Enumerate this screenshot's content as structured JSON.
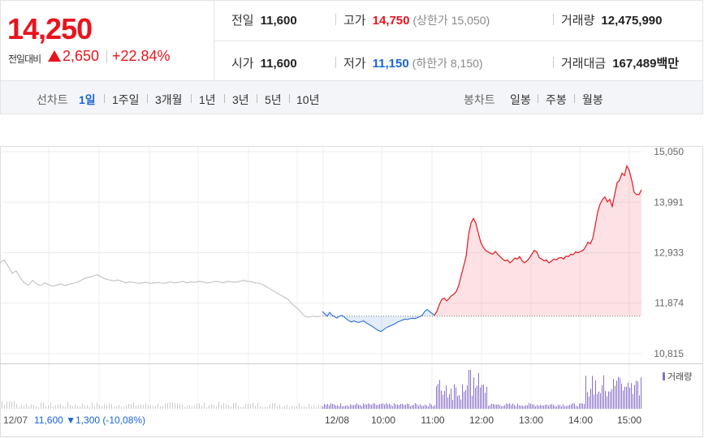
{
  "summary": {
    "price": "14,250",
    "change_label": "전일대비",
    "change_value": "2,650",
    "change_pct": "+22.84%",
    "prev_close_label": "전일",
    "prev_close": "11,600",
    "open_label": "시가",
    "open": "11,600",
    "high_label": "고가",
    "high": "14,750",
    "upper_limit": "(상한가 15,050)",
    "low_label": "저가",
    "low": "11,150",
    "lower_limit": "(하한가 8,150)",
    "volume_label": "거래량",
    "volume": "12,475,990",
    "amount_label": "거래대금",
    "amount": "167,489",
    "amount_unit": "백만"
  },
  "tabs": {
    "line_title": "선차트",
    "line": [
      "1일",
      "1주일",
      "3개월",
      "1년",
      "3년",
      "5년",
      "10년"
    ],
    "candle_title": "봉차트",
    "candle": [
      "일봉",
      "주봉",
      "월봉"
    ]
  },
  "colors": {
    "up": "#e8141d",
    "down": "#1a64d6",
    "accent": "#1a64d6"
  },
  "chart_data": {
    "type": "line",
    "ylabels": [
      "15,050",
      "13,991",
      "12,933",
      "11,874",
      "10,815"
    ],
    "ylim": [
      10815,
      15050
    ],
    "baseline": 11600,
    "xlabels": [
      "12/07",
      "12/08",
      "10:00",
      "11:00",
      "12:00",
      "13:00",
      "14:00",
      "15:00"
    ],
    "volume_label": "거래량",
    "prev_day_footer": "11,600 ▼1,300 (-10,08%)",
    "prev_day": [
      [
        0,
        12720
      ],
      [
        5,
        12780
      ],
      [
        10,
        12650
      ],
      [
        15,
        12500
      ],
      [
        20,
        12550
      ],
      [
        25,
        12400
      ],
      [
        30,
        12300
      ],
      [
        35,
        12250
      ],
      [
        40,
        12350
      ],
      [
        45,
        12280
      ],
      [
        50,
        12240
      ],
      [
        55,
        12300
      ],
      [
        60,
        12260
      ],
      [
        65,
        12230
      ],
      [
        70,
        12250
      ],
      [
        75,
        12280
      ],
      [
        80,
        12240
      ],
      [
        85,
        12270
      ],
      [
        90,
        12290
      ],
      [
        95,
        12310
      ],
      [
        100,
        12350
      ],
      [
        105,
        12400
      ],
      [
        110,
        12420
      ],
      [
        115,
        12440
      ],
      [
        120,
        12470
      ],
      [
        125,
        12420
      ],
      [
        130,
        12380
      ],
      [
        135,
        12360
      ],
      [
        140,
        12340
      ],
      [
        145,
        12360
      ],
      [
        150,
        12330
      ],
      [
        155,
        12300
      ],
      [
        160,
        12320
      ],
      [
        165,
        12310
      ],
      [
        170,
        12290
      ],
      [
        175,
        12300
      ],
      [
        180,
        12310
      ],
      [
        185,
        12290
      ],
      [
        190,
        12300
      ],
      [
        195,
        12310
      ],
      [
        200,
        12290
      ],
      [
        205,
        12300
      ],
      [
        210,
        12320
      ],
      [
        215,
        12300
      ],
      [
        220,
        12310
      ],
      [
        225,
        12330
      ],
      [
        230,
        12300
      ],
      [
        235,
        12320
      ],
      [
        240,
        12310
      ],
      [
        245,
        12330
      ],
      [
        250,
        12320
      ],
      [
        255,
        12300
      ],
      [
        260,
        12310
      ],
      [
        265,
        12330
      ],
      [
        270,
        12320
      ],
      [
        275,
        12300
      ],
      [
        280,
        12330
      ],
      [
        285,
        12320
      ],
      [
        290,
        12310
      ],
      [
        295,
        12330
      ],
      [
        300,
        12350
      ],
      [
        305,
        12330
      ],
      [
        310,
        12320
      ],
      [
        315,
        12300
      ],
      [
        320,
        12290
      ],
      [
        325,
        12250
      ],
      [
        330,
        12200
      ],
      [
        335,
        12150
      ],
      [
        340,
        12100
      ],
      [
        345,
        12050
      ],
      [
        350,
        12000
      ],
      [
        355,
        11950
      ],
      [
        360,
        11850
      ],
      [
        365,
        11780
      ],
      [
        370,
        11700
      ],
      [
        375,
        11600
      ],
      [
        380,
        11580
      ],
      [
        385,
        11600
      ],
      [
        390,
        11590
      ],
      [
        395,
        11600
      ]
    ],
    "today_down": [
      [
        397,
        11700
      ],
      [
        400,
        11650
      ],
      [
        403,
        11600
      ],
      [
        406,
        11680
      ],
      [
        409,
        11620
      ],
      [
        412,
        11590
      ],
      [
        415,
        11560
      ],
      [
        418,
        11600
      ],
      [
        421,
        11620
      ],
      [
        424,
        11580
      ],
      [
        427,
        11540
      ],
      [
        430,
        11500
      ],
      [
        433,
        11480
      ],
      [
        436,
        11500
      ],
      [
        439,
        11480
      ],
      [
        442,
        11470
      ],
      [
        445,
        11490
      ],
      [
        448,
        11500
      ],
      [
        451,
        11460
      ],
      [
        454,
        11430
      ],
      [
        457,
        11400
      ],
      [
        460,
        11370
      ],
      [
        463,
        11330
      ],
      [
        466,
        11300
      ],
      [
        469,
        11280
      ],
      [
        472,
        11310
      ],
      [
        475,
        11350
      ],
      [
        478,
        11380
      ],
      [
        481,
        11400
      ],
      [
        484,
        11420
      ],
      [
        487,
        11450
      ],
      [
        490,
        11480
      ],
      [
        493,
        11500
      ],
      [
        496,
        11520
      ],
      [
        499,
        11540
      ],
      [
        502,
        11530
      ],
      [
        505,
        11550
      ],
      [
        508,
        11560
      ],
      [
        511,
        11550
      ],
      [
        514,
        11570
      ],
      [
        517,
        11590
      ],
      [
        520,
        11620
      ],
      [
        523,
        11700
      ],
      [
        526,
        11740
      ],
      [
        529,
        11700
      ],
      [
        532,
        11660
      ],
      [
        535,
        11620
      ]
    ],
    "today_up": [
      [
        535,
        11620
      ],
      [
        538,
        11700
      ],
      [
        541,
        11840
      ],
      [
        544,
        11950
      ],
      [
        547,
        11980
      ],
      [
        550,
        11920
      ],
      [
        553,
        11970
      ],
      [
        556,
        12030
      ],
      [
        559,
        12060
      ],
      [
        562,
        12120
      ],
      [
        565,
        12250
      ],
      [
        568,
        12450
      ],
      [
        571,
        12650
      ],
      [
        574,
        12850
      ],
      [
        577,
        13300
      ],
      [
        580,
        13550
      ],
      [
        583,
        13650
      ],
      [
        586,
        13550
      ],
      [
        589,
        13350
      ],
      [
        592,
        13150
      ],
      [
        595,
        13050
      ],
      [
        598,
        12980
      ],
      [
        601,
        12950
      ],
      [
        604,
        12920
      ],
      [
        607,
        12900
      ],
      [
        610,
        12960
      ],
      [
        613,
        12900
      ],
      [
        616,
        12850
      ],
      [
        619,
        12800
      ],
      [
        622,
        12760
      ],
      [
        625,
        12780
      ],
      [
        628,
        12720
      ],
      [
        631,
        12760
      ],
      [
        634,
        12820
      ],
      [
        637,
        12800
      ],
      [
        640,
        12850
      ],
      [
        643,
        12760
      ],
      [
        646,
        12720
      ],
      [
        649,
        12760
      ],
      [
        652,
        12820
      ],
      [
        655,
        12900
      ],
      [
        658,
        12980
      ],
      [
        661,
        12950
      ],
      [
        664,
        12830
      ],
      [
        667,
        12800
      ],
      [
        670,
        12760
      ],
      [
        673,
        12780
      ],
      [
        676,
        12720
      ],
      [
        679,
        12750
      ],
      [
        682,
        12800
      ],
      [
        685,
        12780
      ],
      [
        688,
        12820
      ],
      [
        691,
        12830
      ],
      [
        694,
        12800
      ],
      [
        697,
        12860
      ],
      [
        700,
        12850
      ],
      [
        703,
        12900
      ],
      [
        706,
        12890
      ],
      [
        709,
        12950
      ],
      [
        712,
        12930
      ],
      [
        715,
        12960
      ],
      [
        718,
        12980
      ],
      [
        721,
        13050
      ],
      [
        724,
        13150
      ],
      [
        727,
        13120
      ],
      [
        730,
        13230
      ],
      [
        733,
        13500
      ],
      [
        736,
        13780
      ],
      [
        739,
        13950
      ],
      [
        742,
        14050
      ],
      [
        745,
        14100
      ],
      [
        748,
        14000
      ],
      [
        751,
        14050
      ],
      [
        754,
        13900
      ],
      [
        757,
        14150
      ],
      [
        760,
        14400
      ],
      [
        763,
        14450
      ],
      [
        766,
        14600
      ],
      [
        769,
        14550
      ],
      [
        772,
        14750
      ],
      [
        775,
        14650
      ],
      [
        778,
        14450
      ],
      [
        781,
        14200
      ],
      [
        784,
        14150
      ],
      [
        787,
        14150
      ],
      [
        790,
        14250
      ]
    ]
  }
}
